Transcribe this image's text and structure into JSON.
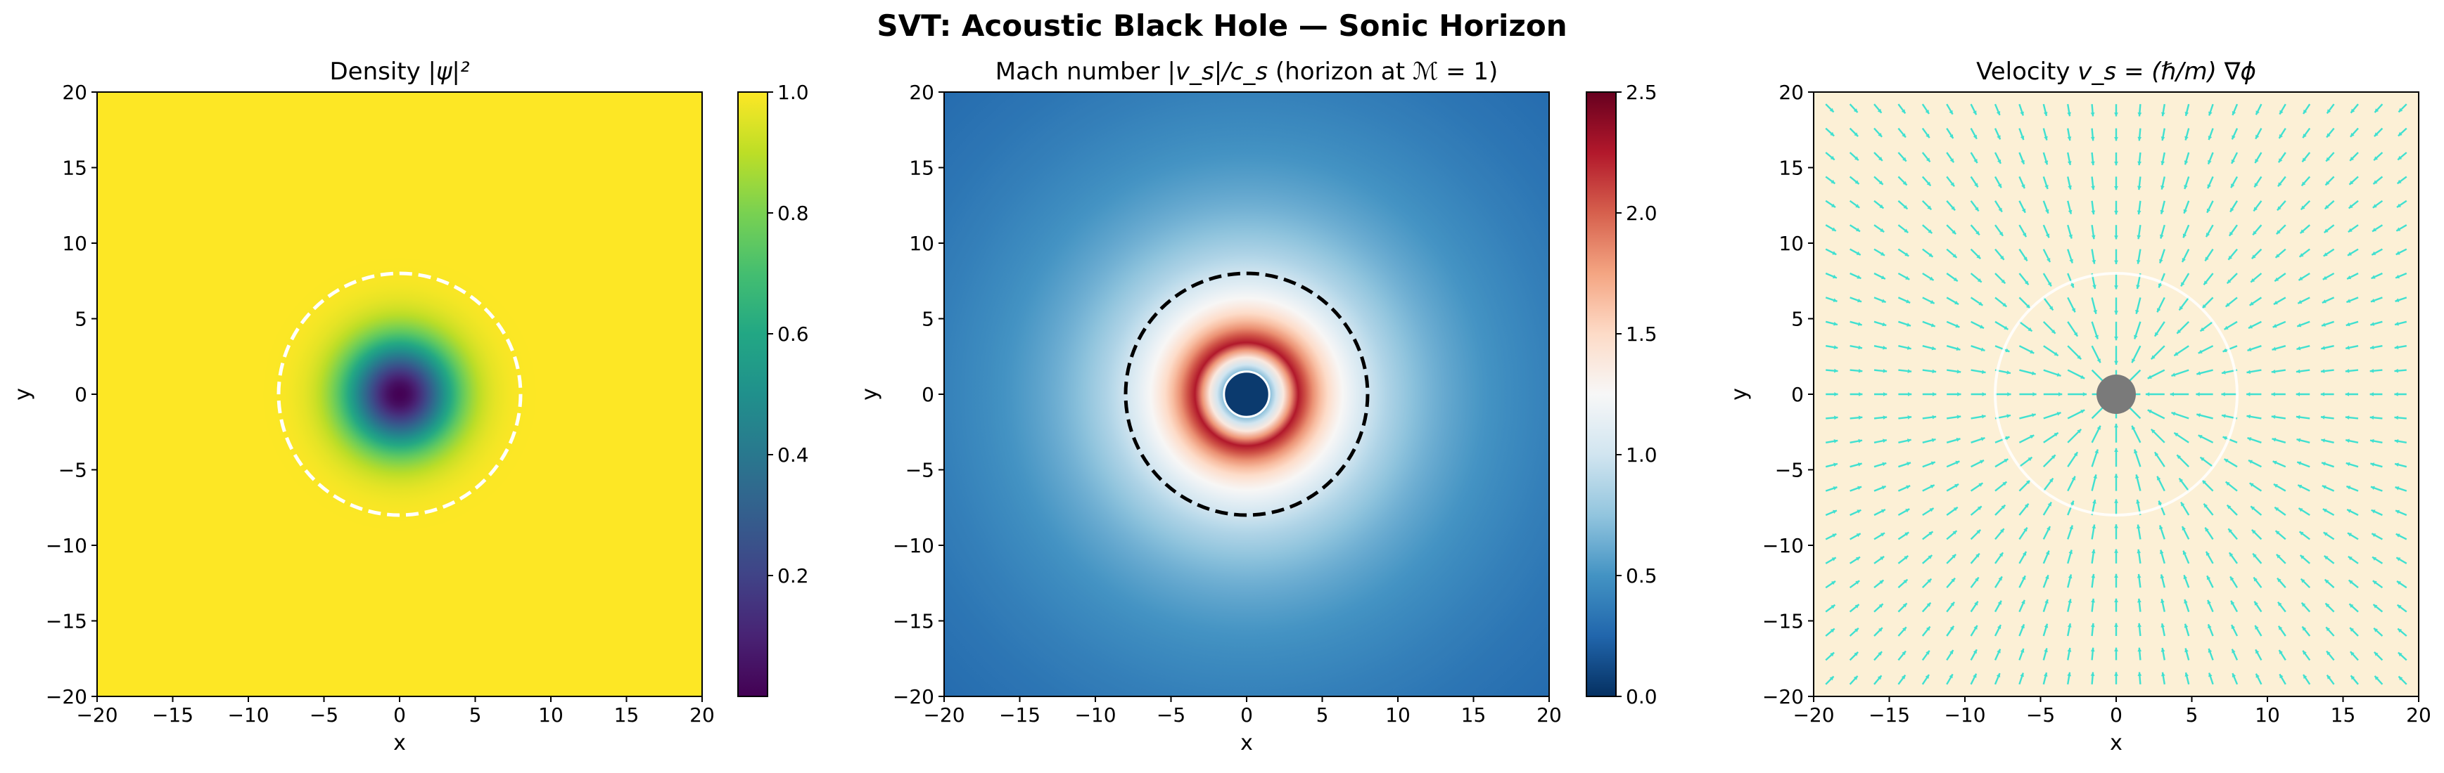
{
  "figure": {
    "suptitle": "SVT: Acoustic Black Hole — Sonic Horizon"
  },
  "chart_data": [
    {
      "type": "heatmap",
      "panel": "density",
      "title_prefix": "Density  ",
      "title_math": "|ψ|²",
      "xlabel": "x",
      "ylabel": "y",
      "xlim": [
        -20,
        20
      ],
      "ylim": [
        -20,
        20
      ],
      "xticks": [
        -20,
        -15,
        -10,
        -5,
        0,
        5,
        10,
        15,
        20
      ],
      "yticks": [
        -20,
        -15,
        -10,
        -5,
        0,
        5,
        10,
        15,
        20
      ],
      "colormap": "viridis",
      "clim": [
        0.0,
        1.0
      ],
      "colorbar_ticks": [
        "0.2",
        "0.4",
        "0.6",
        "0.8",
        "1.0"
      ],
      "colorbar_tick_values": [
        0.2,
        0.4,
        0.6,
        0.8,
        1.0
      ],
      "field": "density = 1 - exp(-r²/12), min ≈ 0 at origin, saturates to 1.0 beyond r ≈ 8",
      "density_core_scale": 3.5,
      "horizon_circle": {
        "radius": 8,
        "color": "#ffffff",
        "style": "dashed"
      }
    },
    {
      "type": "heatmap",
      "panel": "mach",
      "title_prefix": "Mach number  ",
      "title_math": "|v_s|/c_s",
      "title_suffix": "   (horizon at ℳ = 1)",
      "xlabel": "x",
      "ylabel": "y",
      "xlim": [
        -20,
        20
      ],
      "ylim": [
        -20,
        20
      ],
      "xticks": [
        -20,
        -15,
        -10,
        -5,
        0,
        5,
        10,
        15,
        20
      ],
      "yticks": [
        -20,
        -15,
        -10,
        -5,
        0,
        5,
        10,
        15,
        20
      ],
      "colormap": "RdBu_r",
      "clim": [
        0.0,
        2.5
      ],
      "colorbar_ticks": [
        "0.0",
        "0.5",
        "1.0",
        "1.5",
        "2.0",
        "2.5"
      ],
      "colorbar_tick_values": [
        0.0,
        0.5,
        1.0,
        1.5,
        2.0,
        2.5
      ],
      "field": "mach ≈ 8/r outside core, peaks ≈ 2.3 near r ≈ 3.5, masked core r < 1.5",
      "mach_scale": 8,
      "mach_peak_radius": 3.5,
      "core_mask": {
        "radius": 1.5,
        "color": "#0b3a6e",
        "edge": "#ffffff"
      },
      "horizon_circle": {
        "radius": 8,
        "color": "#000000",
        "style": "dashed"
      }
    },
    {
      "type": "quiver",
      "panel": "velocity",
      "title_prefix": "Velocity  ",
      "title_math": "v_s = (ℏ/m) ∇ϕ",
      "xlabel": "x",
      "ylabel": "y",
      "xlim": [
        -20,
        20
      ],
      "ylim": [
        -20,
        20
      ],
      "xticks": [
        -20,
        -15,
        -10,
        -5,
        0,
        5,
        10,
        15,
        20
      ],
      "yticks": [
        -20,
        -15,
        -10,
        -5,
        0,
        5,
        10,
        15,
        20
      ],
      "background": "#fcf0d6",
      "arrow_color": "#40e0d0",
      "arrow_direction": "radially inward toward origin",
      "grid_spacing": 1.6,
      "core": {
        "radius": 1.3,
        "color": "#7a7a7a"
      },
      "horizon_circle": {
        "radius": 8,
        "color": "#ffffff",
        "style": "solid"
      }
    }
  ]
}
